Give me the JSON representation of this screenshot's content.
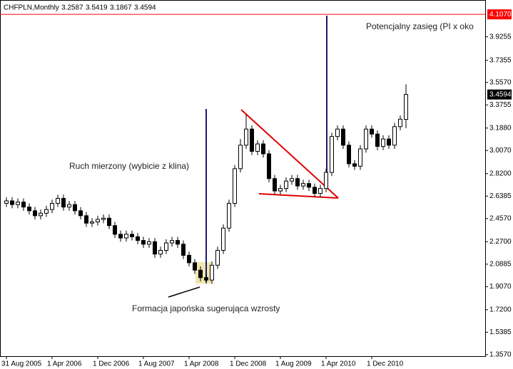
{
  "chart_data": {
    "type": "candlestick",
    "title": "CHFPLN,Monthly",
    "categories": [
      "31 Aug 2005",
      null,
      null,
      null,
      null,
      null,
      null,
      null,
      "1 Apr 2006",
      null,
      null,
      null,
      null,
      null,
      null,
      null,
      "1 Dec 2006",
      null,
      null,
      null,
      null,
      null,
      null,
      null,
      "1 Aug 2007",
      null,
      null,
      null,
      null,
      null,
      null,
      null,
      "1 Apr 2008",
      null,
      null,
      null,
      null,
      null,
      null,
      null,
      "1 Dec 2008",
      null,
      null,
      null,
      null,
      null,
      null,
      null,
      "1 Aug 2009",
      null,
      null,
      null,
      null,
      null,
      null,
      null,
      "1 Apr 2010",
      null,
      null,
      null,
      null,
      null,
      null,
      null,
      "1 Dec 2010",
      null,
      null,
      null,
      null,
      null,
      null
    ],
    "open": [
      2.58,
      2.6,
      2.57,
      2.59,
      2.55,
      2.52,
      2.48,
      2.5,
      2.53,
      2.58,
      2.62,
      2.55,
      2.57,
      2.52,
      2.48,
      2.42,
      2.43,
      2.45,
      2.46,
      2.4,
      2.33,
      2.3,
      2.33,
      2.31,
      2.28,
      2.25,
      2.27,
      2.17,
      2.2,
      2.26,
      2.28,
      2.25,
      2.16,
      2.1,
      2.04,
      1.98,
      1.96,
      2.08,
      2.2,
      2.38,
      2.58,
      2.86,
      3.05,
      3.18,
      3.0,
      3.06,
      2.98,
      2.78,
      2.68,
      2.7,
      2.76,
      2.78,
      2.72,
      2.74,
      2.71,
      2.66,
      2.7,
      2.83,
      3.12,
      3.18,
      3.05,
      2.9,
      2.88,
      3.02,
      3.18,
      3.14,
      3.04,
      3.1,
      3.05,
      3.2,
      3.2587
    ],
    "high": [
      2.63,
      2.63,
      2.62,
      2.62,
      2.58,
      2.55,
      2.53,
      2.56,
      2.61,
      2.65,
      2.65,
      2.6,
      2.6,
      2.55,
      2.51,
      2.46,
      2.48,
      2.49,
      2.49,
      2.43,
      2.36,
      2.36,
      2.36,
      2.34,
      2.31,
      2.3,
      2.3,
      2.23,
      2.29,
      2.31,
      2.31,
      2.28,
      2.19,
      2.13,
      2.07,
      2.01,
      2.11,
      2.23,
      2.41,
      2.61,
      2.89,
      3.1,
      3.3,
      3.21,
      3.09,
      3.09,
      3.01,
      2.81,
      2.73,
      2.79,
      2.81,
      2.81,
      2.77,
      2.77,
      2.74,
      2.73,
      2.86,
      3.15,
      3.21,
      3.21,
      3.08,
      2.93,
      3.05,
      3.21,
      3.21,
      3.17,
      3.13,
      3.13,
      3.23,
      3.29,
      3.5419
    ],
    "low": [
      2.55,
      2.54,
      2.54,
      2.52,
      2.49,
      2.45,
      2.45,
      2.47,
      2.5,
      2.55,
      2.52,
      2.52,
      2.49,
      2.45,
      2.39,
      2.39,
      2.4,
      2.42,
      2.37,
      2.3,
      2.27,
      2.27,
      2.28,
      2.25,
      2.22,
      2.22,
      2.14,
      2.14,
      2.17,
      2.23,
      2.22,
      2.13,
      2.07,
      2.01,
      1.95,
      1.93,
      1.93,
      2.05,
      2.17,
      2.35,
      2.55,
      2.83,
      3.02,
      2.97,
      2.97,
      2.95,
      2.75,
      2.65,
      2.65,
      2.67,
      2.73,
      2.69,
      2.69,
      2.68,
      2.63,
      2.63,
      2.67,
      2.8,
      3.09,
      3.02,
      2.87,
      2.85,
      2.85,
      2.99,
      3.11,
      3.01,
      3.01,
      3.02,
      3.02,
      3.17,
      3.1867
    ],
    "close": [
      2.6,
      2.57,
      2.59,
      2.55,
      2.52,
      2.48,
      2.5,
      2.53,
      2.58,
      2.62,
      2.55,
      2.57,
      2.52,
      2.48,
      2.42,
      2.43,
      2.45,
      2.46,
      2.4,
      2.33,
      2.3,
      2.33,
      2.31,
      2.28,
      2.25,
      2.27,
      2.17,
      2.2,
      2.26,
      2.28,
      2.25,
      2.16,
      2.1,
      2.04,
      1.98,
      1.96,
      2.08,
      2.2,
      2.38,
      2.58,
      2.86,
      3.05,
      3.18,
      3.0,
      3.06,
      2.98,
      2.78,
      2.68,
      2.7,
      2.76,
      2.78,
      2.72,
      2.74,
      2.71,
      2.66,
      2.7,
      2.83,
      3.12,
      3.18,
      3.05,
      2.9,
      2.88,
      3.02,
      3.18,
      3.14,
      3.04,
      3.1,
      3.05,
      3.2,
      3.26,
      3.4594
    ],
    "up_color": "#ffffff",
    "down_color": "#000000",
    "ylim": [
      1.345,
      4.2
    ],
    "yticks": [
      3.9255,
      3.7355,
      {
        "value": 3.557,
        "label": "3.5570"
      },
      3.3755,
      {
        "value": 3.188,
        "label": "3.1880"
      },
      {
        "value": 3.007,
        "label": "3.0070"
      },
      {
        "value": 2.82,
        "label": "2.8200"
      },
      2.6385,
      {
        "value": 2.457,
        "label": "2.4570"
      },
      {
        "value": 2.27,
        "label": "2.2700"
      },
      2.0885,
      {
        "value": 1.907,
        "label": "1.9070"
      },
      {
        "value": 1.72,
        "label": "1.7200"
      },
      1.5385,
      {
        "value": 1.357,
        "label": "1.3570"
      }
    ],
    "level_line": {
      "value": 4.107,
      "label": "4.1070",
      "color": "#ff0000"
    },
    "annotations": [
      "Potencjalny zasięg (PI x oko",
      "Ruch mierzony (wybicie z klina)",
      "Formacja japońska sugerująca wzrosty"
    ]
  }
}
